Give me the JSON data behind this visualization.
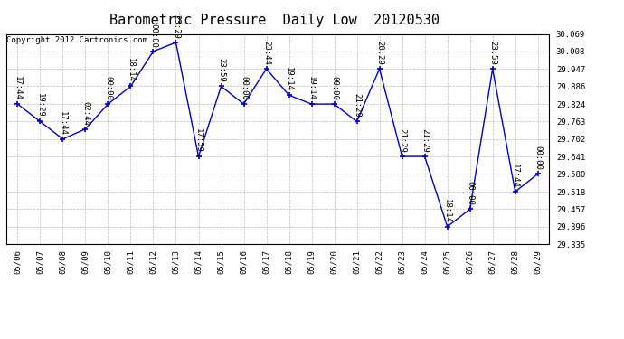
{
  "title": "Barometric Pressure  Daily Low  20120530",
  "copyright": "Copyright 2012 Cartronics.com",
  "x_labels": [
    "05/06",
    "05/07",
    "05/08",
    "05/09",
    "05/10",
    "05/11",
    "05/12",
    "05/13",
    "05/14",
    "05/15",
    "05/16",
    "05/17",
    "05/18",
    "05/19",
    "05/20",
    "05/21",
    "05/22",
    "05/23",
    "05/24",
    "05/25",
    "05/26",
    "05/27",
    "05/28",
    "05/29"
  ],
  "y_values": [
    29.824,
    29.763,
    29.702,
    29.737,
    29.824,
    29.886,
    30.008,
    30.039,
    29.641,
    29.886,
    29.824,
    29.947,
    29.855,
    29.824,
    29.824,
    29.763,
    29.947,
    29.641,
    29.641,
    29.396,
    29.457,
    29.947,
    29.518,
    29.58
  ],
  "time_labels": [
    "17:44",
    "19:29",
    "17:44",
    "02:44",
    "00:00",
    "18:14",
    "00:00",
    "23:29",
    "17:59",
    "23:59",
    "00:00",
    "23:44",
    "19:14",
    "19:14",
    "00:00",
    "21:29",
    "20:29",
    "21:29",
    "21:29",
    "18:14",
    "00:00",
    "23:59",
    "17:44",
    "00:00"
  ],
  "line_color": "#0000bb",
  "marker_color": "#0000bb",
  "background_color": "#ffffff",
  "grid_color": "#bbbbbb",
  "ylim_min": 29.335,
  "ylim_max": 30.069,
  "yticks": [
    29.335,
    29.396,
    29.457,
    29.518,
    29.58,
    29.641,
    29.702,
    29.763,
    29.824,
    29.886,
    29.947,
    30.008,
    30.069
  ],
  "title_fontsize": 11,
  "copyright_fontsize": 6.5,
  "tick_fontsize": 6.5,
  "label_fontsize": 6.5
}
